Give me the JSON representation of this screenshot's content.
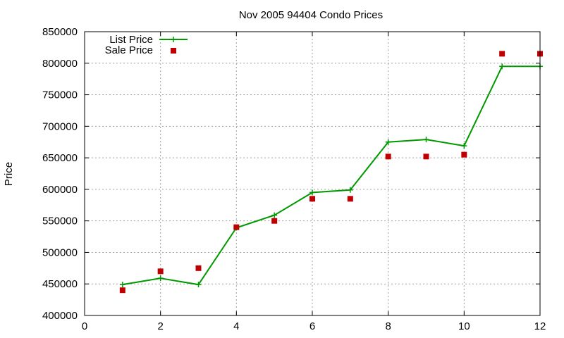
{
  "chart_data": {
    "type": "line",
    "title": "Nov 2005 94404 Condo Prices",
    "xlabel": "",
    "ylabel": "Price",
    "xlim": [
      0,
      12
    ],
    "ylim": [
      400000,
      850000
    ],
    "x_ticks": [
      "0",
      "2",
      "4",
      "6",
      "8",
      "10",
      "12"
    ],
    "y_ticks": [
      "400000",
      "450000",
      "500000",
      "550000",
      "600000",
      "650000",
      "700000",
      "750000",
      "800000",
      "850000"
    ],
    "grid": true,
    "legend_position": "top-left",
    "series": [
      {
        "name": "List Price",
        "style": "line-with-plus-markers",
        "color": "#009900",
        "x": [
          1,
          2,
          3,
          4,
          5,
          6,
          7,
          8,
          9,
          10,
          11,
          12
        ],
        "y": [
          449000,
          459000,
          449000,
          539000,
          559000,
          595000,
          599000,
          675000,
          679000,
          669000,
          795000,
          795000
        ]
      },
      {
        "name": "Sale Price",
        "style": "square-markers",
        "color": "#c00000",
        "x": [
          1,
          2,
          3,
          4,
          5,
          6,
          7,
          8,
          9,
          10,
          11,
          12
        ],
        "y": [
          440000,
          470000,
          475000,
          540000,
          550000,
          585000,
          585000,
          652000,
          652000,
          655000,
          815000,
          815000
        ]
      }
    ]
  }
}
